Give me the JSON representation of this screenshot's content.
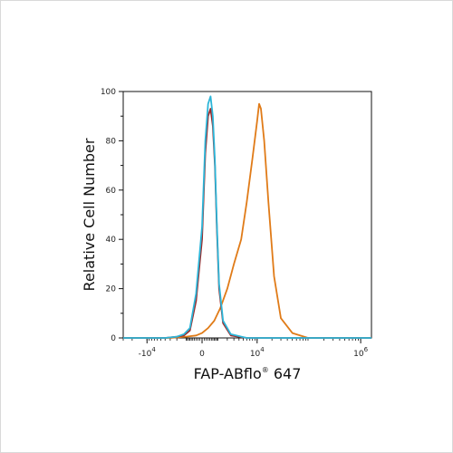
{
  "chart_data": {
    "type": "line",
    "xlabel": "FAP-ABflo",
    "xlabel_sup": "®",
    "xlabel_suffix": " 647",
    "ylabel": "Relative Cell Number",
    "ylim": [
      0,
      100
    ],
    "x_scale": "biexponential",
    "xlim": [
      -30000,
      1600000
    ],
    "y_ticks": [
      {
        "value": 0,
        "label": "0"
      },
      {
        "value": 20,
        "label": "20"
      },
      {
        "value": 40,
        "label": "40"
      },
      {
        "value": 60,
        "label": "60"
      },
      {
        "value": 80,
        "label": "80"
      },
      {
        "value": 100,
        "label": "100"
      }
    ],
    "x_ticks": [
      {
        "value": -10000,
        "base": "-10",
        "exp": "4"
      },
      {
        "value": 0,
        "base": "0",
        "exp": ""
      },
      {
        "value": 10000,
        "base": "10",
        "exp": "4"
      },
      {
        "value": 1000000,
        "base": "10",
        "exp": "6"
      }
    ],
    "series": [
      {
        "color": "#e07b18",
        "x": [
          -30000,
          -3000,
          -1000,
          -300,
          0,
          300,
          700,
          1200,
          2000,
          3000,
          4500,
          6000,
          8000,
          10000,
          11000,
          12000,
          14000,
          17000,
          22000,
          30000,
          50000,
          100000,
          1600000
        ],
        "y": [
          0,
          0,
          0.5,
          1,
          2,
          4,
          7,
          12,
          20,
          30,
          40,
          55,
          73,
          88,
          95,
          93,
          80,
          55,
          25,
          8,
          2,
          0,
          0
        ]
      },
      {
        "color": "#9c2a2a",
        "x": [
          -30000,
          -4000,
          -2000,
          -1200,
          -700,
          -300,
          0,
          150,
          300,
          450,
          600,
          750,
          900,
          1100,
          1500,
          2500,
          6000,
          1600000
        ],
        "y": [
          0,
          0,
          0.5,
          1,
          3,
          15,
          40,
          75,
          90,
          93,
          86,
          70,
          45,
          20,
          6,
          1,
          0,
          0
        ]
      },
      {
        "color": "#2cb5d8",
        "x": [
          -30000,
          -4000,
          -2000,
          -1200,
          -700,
          -300,
          0,
          150,
          300,
          450,
          600,
          750,
          900,
          1100,
          1500,
          2500,
          6000,
          1600000
        ],
        "y": [
          0,
          0,
          0.5,
          1.5,
          4,
          18,
          45,
          80,
          95,
          98,
          90,
          72,
          47,
          22,
          7,
          1.5,
          0,
          0
        ]
      }
    ]
  }
}
